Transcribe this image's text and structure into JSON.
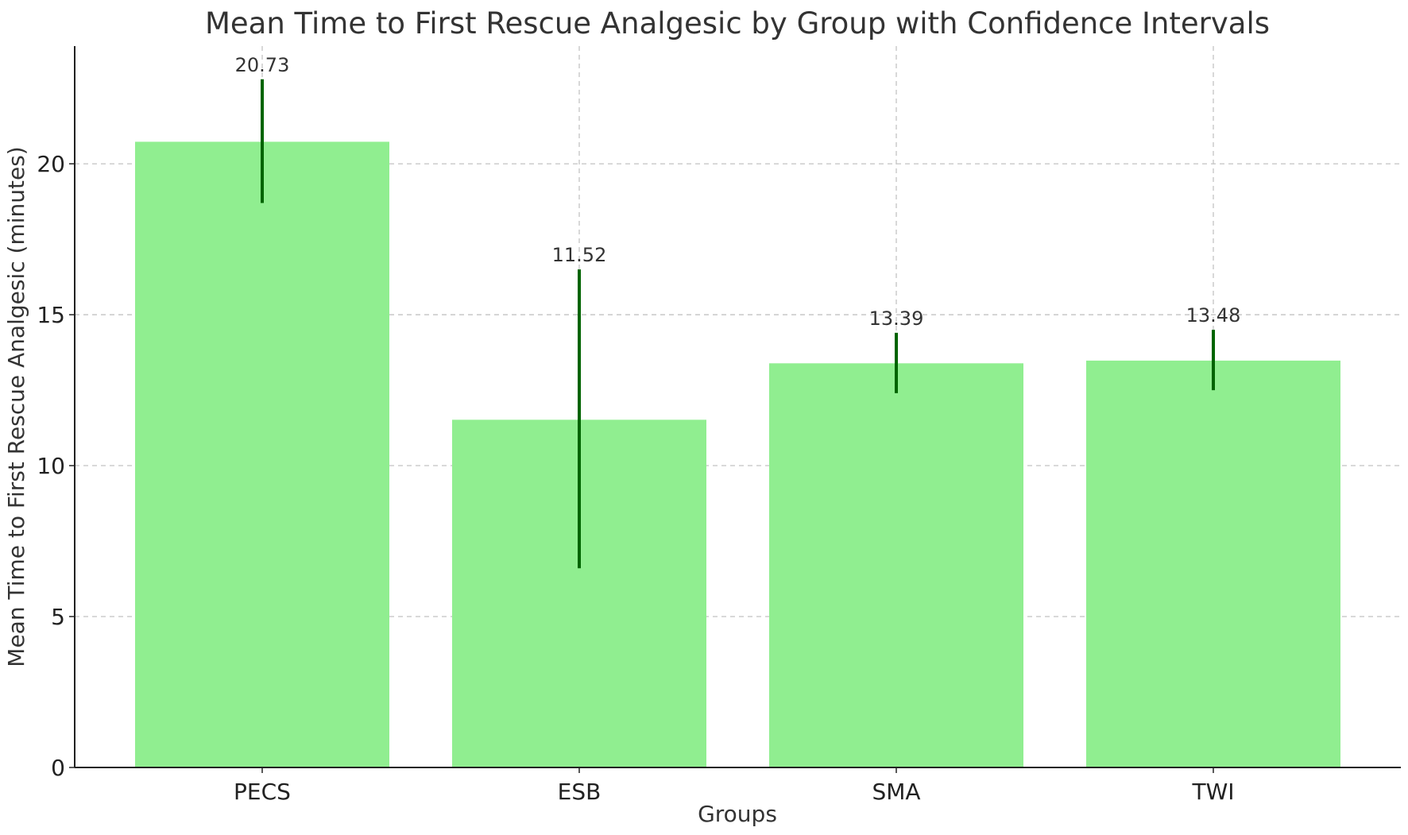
{
  "chart_data": {
    "type": "bar",
    "title": "Mean Time to First Rescue Analgesic by Group with Confidence Intervals",
    "xlabel": "Groups",
    "ylabel": "Mean Time to First Rescue Analgesic (minutes)",
    "categories": [
      "PECS",
      "ESB",
      "SMA",
      "TWI"
    ],
    "values": [
      20.73,
      11.52,
      13.39,
      13.48
    ],
    "value_labels": [
      "20.73",
      "11.52",
      "13.39",
      "13.48"
    ],
    "ci_lower": [
      18.7,
      6.6,
      12.4,
      12.5
    ],
    "ci_upper": [
      22.8,
      16.5,
      14.4,
      14.5
    ],
    "ylim": [
      0,
      23.9
    ],
    "yticks": [
      0,
      5,
      10,
      15,
      20
    ],
    "grid": true,
    "bar_color": "#90ee90",
    "error_color": "#006400"
  }
}
